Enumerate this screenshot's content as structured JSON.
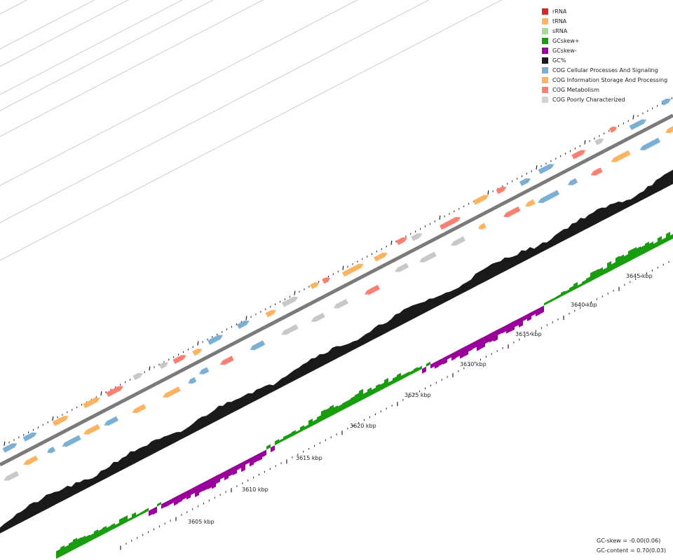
{
  "legend": [
    {
      "label": "rRNA",
      "color": "#d62728"
    },
    {
      "label": "tRNA",
      "color": "#fdb462"
    },
    {
      "label": "sRNA",
      "color": "#a6d99a"
    },
    {
      "label": "GCskew+",
      "color": "#1a9c10"
    },
    {
      "label": "GCskew-",
      "color": "#990099"
    },
    {
      "label": "GC%",
      "color": "#1a1a1a"
    },
    {
      "label": "COG Cellular Processes And Signaling",
      "color": "#7bafd4"
    },
    {
      "label": "COG Information Storage And Processing",
      "color": "#fdb462"
    },
    {
      "label": "COG Metabolism",
      "color": "#fa8072"
    },
    {
      "label": "COG Poorly Characterized",
      "color": "#d3d3d3"
    }
  ],
  "axis": {
    "unit": "kbp",
    "labels": [
      "3605 kbp",
      "3610 kbp",
      "3615 kbp",
      "3620 kbp",
      "3625 kbp",
      "3630 kbp",
      "3635 kbp",
      "3640 kbp",
      "3645 kbp"
    ]
  },
  "stats": {
    "gc_skew": "GC-skew = -0.00(0.06)",
    "gc_content": "GC-content = 0.70(0.03)"
  },
  "colors": {
    "cell": "#7bafd4",
    "info": "#fdb462",
    "metab": "#fa8072",
    "poor": "#c8c8c8",
    "gc": "#1a1a1a",
    "skew_pos": "#1a9c10",
    "skew_neg": "#990099",
    "backbone": "#7a7a7a",
    "ring": "#c0c0c0"
  }
}
